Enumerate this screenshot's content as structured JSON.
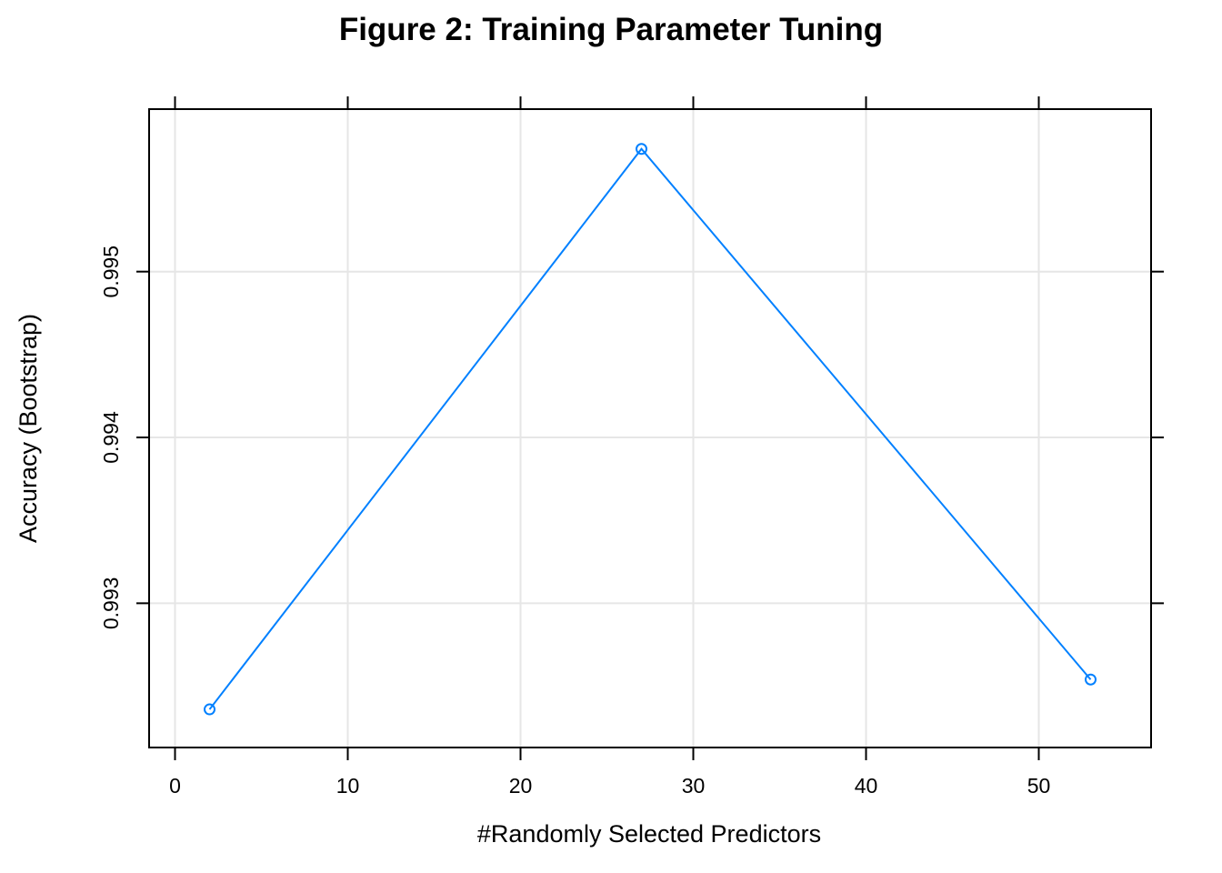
{
  "chart_data": {
    "type": "line",
    "title": "Figure 2: Training Parameter Tuning",
    "xlabel": "#Randomly Selected Predictors",
    "ylabel": "Accuracy (Bootstrap)",
    "x": [
      2,
      27,
      53
    ],
    "series": [
      {
        "values": [
          0.99236,
          0.99574,
          0.99254
        ],
        "color": "#0080ff",
        "marker": "open-circle"
      }
    ],
    "xlim": [
      -1.5,
      56.5
    ],
    "ylim": [
      0.99213,
      0.99598
    ],
    "xticks": [
      0,
      10,
      20,
      30,
      40,
      50
    ],
    "xtick_labels": [
      "0",
      "10",
      "20",
      "30",
      "40",
      "50"
    ],
    "yticks": [
      0.993,
      0.994,
      0.995
    ],
    "ytick_labels": [
      "0.993",
      "0.994",
      "0.995"
    ],
    "grid": true,
    "grid_color": "#e6e6e6",
    "legend": "none"
  }
}
